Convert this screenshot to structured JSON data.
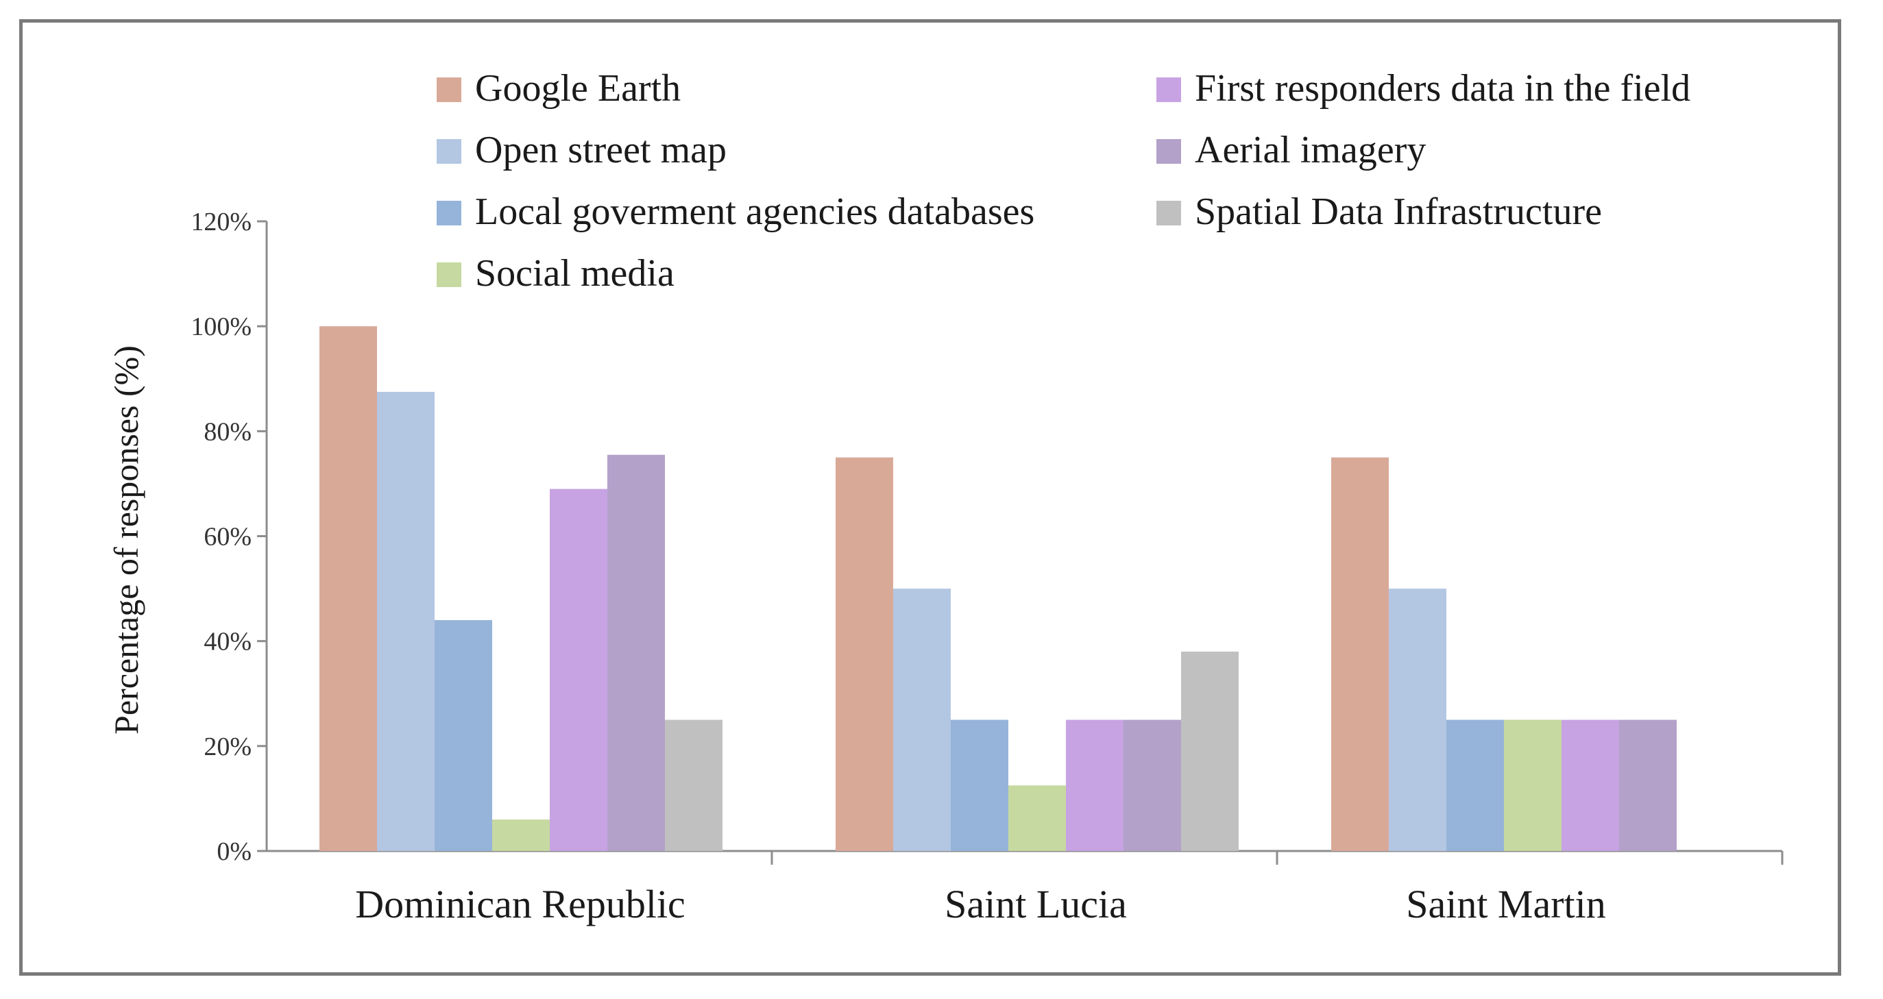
{
  "chart_data": {
    "type": "bar",
    "title": "",
    "xlabel": "",
    "ylabel": "Percentage of responses (%)",
    "ylim": [
      0,
      120
    ],
    "yticks": [
      "0%",
      "20%",
      "40%",
      "60%",
      "80%",
      "100%",
      "120%"
    ],
    "categories": [
      "Dominican Republic",
      "Saint Lucia",
      "Saint Martin"
    ],
    "series": [
      {
        "name": "Google Earth",
        "color": "#d9a998",
        "values": [
          100,
          75,
          75
        ]
      },
      {
        "name": "Open street map",
        "color": "#b3c7e3",
        "values": [
          87.5,
          50,
          50
        ]
      },
      {
        "name": "Local goverment agencies databases",
        "color": "#96b4d9",
        "values": [
          44,
          25,
          25
        ]
      },
      {
        "name": "Social media",
        "color": "#c6d9a0",
        "values": [
          6,
          12.5,
          25
        ]
      },
      {
        "name": "First responders data in the field",
        "color": "#c7a3e3",
        "values": [
          69,
          25,
          25
        ]
      },
      {
        "name": "Aerial imagery",
        "color": "#b3a1c9",
        "values": [
          75.5,
          25,
          25
        ]
      },
      {
        "name": "Spatial Data Infrastructure",
        "color": "#c0c0c0",
        "values": [
          25,
          38,
          0
        ]
      }
    ],
    "legend_position": "top",
    "grid": false
  }
}
